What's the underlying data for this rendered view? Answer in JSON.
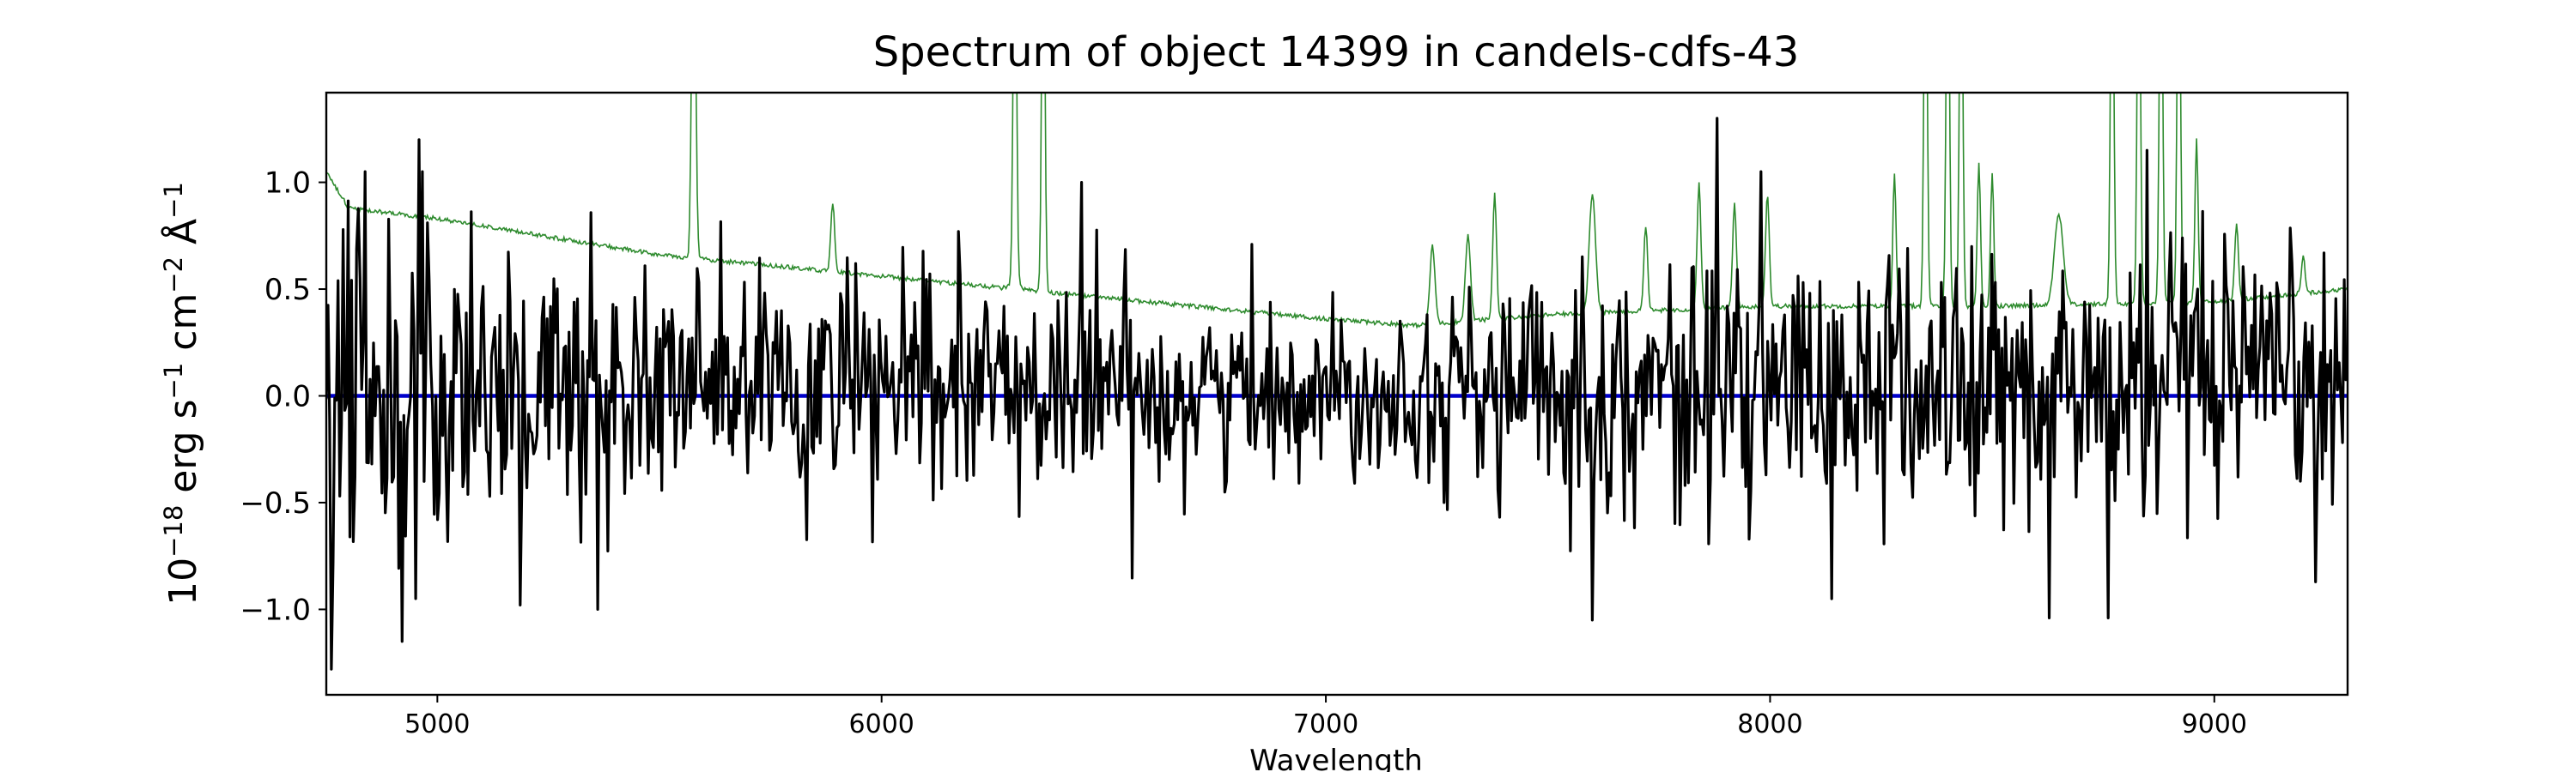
{
  "chart_data": {
    "type": "line",
    "title": "Spectrum of object 14399 in candels-cdfs-43",
    "xlabel": "Wavelength",
    "ylabel": {
      "prefix": "10",
      "exp1": "−18",
      "mid1": " erg s",
      "exp2": "−1",
      "mid2": " cm",
      "exp3": "−2",
      "mid3": " Å",
      "exp4": "−1"
    },
    "xlim": [
      4750,
      9300
    ],
    "ylim": [
      -1.4,
      1.42
    ],
    "xticks": [
      5000,
      6000,
      7000,
      8000,
      9000
    ],
    "xtick_labels": [
      "5000",
      "6000",
      "7000",
      "8000",
      "9000"
    ],
    "yticks": [
      -1.0,
      -0.5,
      0.0,
      0.5,
      1.0
    ],
    "ytick_labels": [
      "−1.0",
      "−0.5",
      "0.0",
      "0.5",
      "1.0"
    ],
    "grid": false,
    "colors": {
      "flux": "#000000",
      "error": "#2e8b2e",
      "zero": "#0000cc"
    },
    "series": [
      {
        "role": "flux",
        "x_start": 4750,
        "x_end": 9300,
        "n_points": 1200,
        "noise_profile": {
          "x": [
            4750,
            5000,
            5300,
            5600,
            6000,
            6500,
            7000,
            7200,
            7500,
            7900,
            8300,
            8700,
            9000,
            9300
          ],
          "amplitude": [
            0.55,
            0.45,
            0.35,
            0.3,
            0.27,
            0.25,
            0.18,
            0.2,
            0.28,
            0.3,
            0.32,
            0.38,
            0.3,
            0.3
          ]
        },
        "features": [
          {
            "x": 4762,
            "y": -1.28
          },
          {
            "x": 4920,
            "y": -1.15
          },
          {
            "x": 4960,
            "y": 1.2
          },
          {
            "x": 5188,
            "y": -0.98
          },
          {
            "x": 5360,
            "y": -1.0
          },
          {
            "x": 6450,
            "y": 1.0
          },
          {
            "x": 7880,
            "y": 1.3
          },
          {
            "x": 7600,
            "y": -1.05
          },
          {
            "x": 8630,
            "y": -1.04
          },
          {
            "x": 8760,
            "y": -1.04
          },
          {
            "x": 8850,
            "y": 1.15
          }
        ]
      },
      {
        "role": "error",
        "continuum": {
          "x": [
            4750,
            4800,
            5000,
            5500,
            6000,
            6500,
            7000,
            7200,
            7500,
            8000,
            8500,
            9000,
            9300
          ],
          "y": [
            1.05,
            0.88,
            0.83,
            0.66,
            0.56,
            0.46,
            0.36,
            0.33,
            0.38,
            0.42,
            0.42,
            0.44,
            0.5
          ]
        },
        "lines": [
          {
            "x": 5577,
            "y": 2.5,
            "w": 6
          },
          {
            "x": 5890,
            "y": 0.9,
            "w": 6
          },
          {
            "x": 6300,
            "y": 2.5,
            "w": 5
          },
          {
            "x": 6364,
            "y": 2.5,
            "w": 5
          },
          {
            "x": 6300,
            "y": 0.55,
            "w": 12
          },
          {
            "x": 7240,
            "y": 0.7,
            "w": 8
          },
          {
            "x": 7320,
            "y": 0.75,
            "w": 8
          },
          {
            "x": 7380,
            "y": 0.95,
            "w": 6
          },
          {
            "x": 7600,
            "y": 0.95,
            "w": 10
          },
          {
            "x": 7720,
            "y": 0.8,
            "w": 6
          },
          {
            "x": 7840,
            "y": 1.0,
            "w": 6
          },
          {
            "x": 7920,
            "y": 0.9,
            "w": 6
          },
          {
            "x": 7994,
            "y": 0.95,
            "w": 6
          },
          {
            "x": 8280,
            "y": 1.05,
            "w": 5
          },
          {
            "x": 8350,
            "y": 2.5,
            "w": 5
          },
          {
            "x": 8400,
            "y": 2.5,
            "w": 5
          },
          {
            "x": 8430,
            "y": 2.5,
            "w": 5
          },
          {
            "x": 8470,
            "y": 1.1,
            "w": 5
          },
          {
            "x": 8500,
            "y": 1.05,
            "w": 5
          },
          {
            "x": 8650,
            "y": 0.85,
            "w": 14
          },
          {
            "x": 8770,
            "y": 2.5,
            "w": 5
          },
          {
            "x": 8830,
            "y": 2.5,
            "w": 5
          },
          {
            "x": 8880,
            "y": 2.5,
            "w": 5
          },
          {
            "x": 8920,
            "y": 2.5,
            "w": 5
          },
          {
            "x": 8960,
            "y": 1.2,
            "w": 5
          },
          {
            "x": 9050,
            "y": 0.8,
            "w": 6
          },
          {
            "x": 9200,
            "y": 0.65,
            "w": 6
          }
        ]
      },
      {
        "role": "zero",
        "x": [
          4750,
          9300
        ],
        "y": [
          0,
          0
        ]
      }
    ]
  }
}
